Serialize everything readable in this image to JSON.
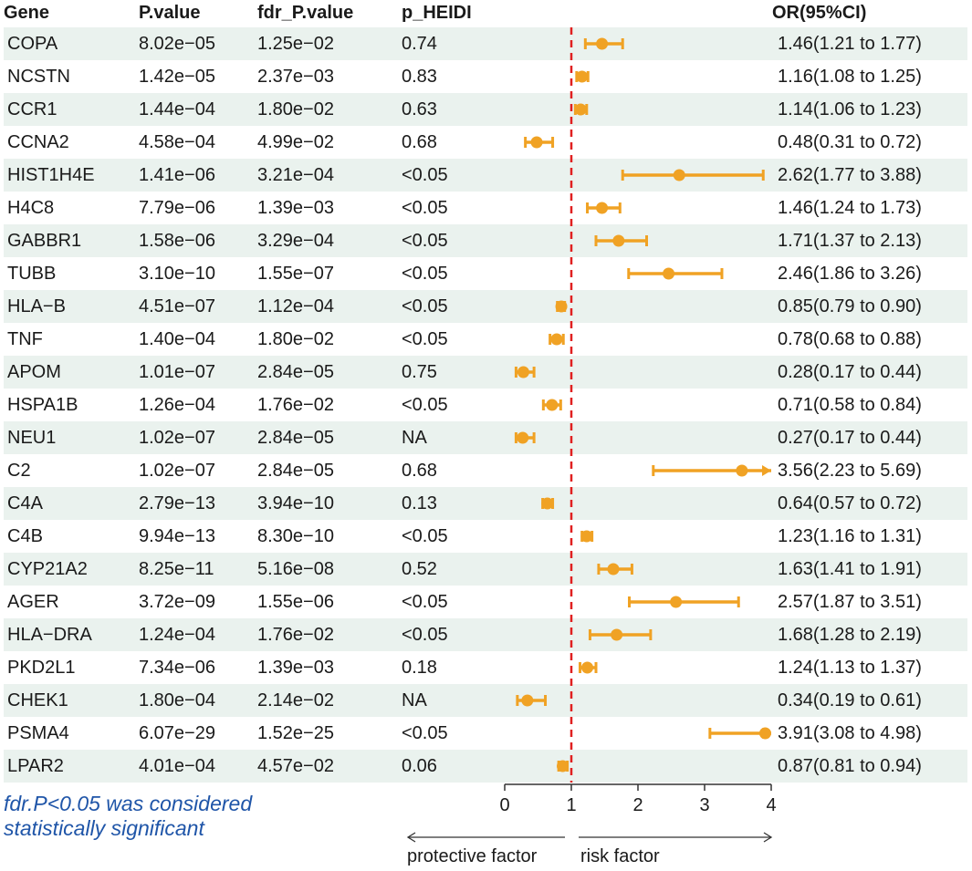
{
  "headers": {
    "gene": "Gene",
    "pvalue": "P.value",
    "fdr": "fdr_P.value",
    "heidi": "p_HEIDI",
    "or": "OR(95%CI)"
  },
  "rows": [
    {
      "gene": "COPA",
      "p": "8.02e−05",
      "fdr": "1.25e−02",
      "heidi": "0.74",
      "or_text": "1.46(1.21 to 1.77)"
    },
    {
      "gene": "NCSTN",
      "p": "1.42e−05",
      "fdr": "2.37e−03",
      "heidi": "0.83",
      "or_text": "1.16(1.08 to 1.25)"
    },
    {
      "gene": "CCR1",
      "p": "1.44e−04",
      "fdr": "1.80e−02",
      "heidi": "0.63",
      "or_text": "1.14(1.06 to 1.23)"
    },
    {
      "gene": "CCNA2",
      "p": "4.58e−04",
      "fdr": "4.99e−02",
      "heidi": "0.68",
      "or_text": "0.48(0.31 to 0.72)"
    },
    {
      "gene": "HIST1H4E",
      "p": "1.41e−06",
      "fdr": "3.21e−04",
      "heidi": "<0.05",
      "or_text": "2.62(1.77 to 3.88)"
    },
    {
      "gene": "H4C8",
      "p": "7.79e−06",
      "fdr": "1.39e−03",
      "heidi": "<0.05",
      "or_text": "1.46(1.24 to 1.73)"
    },
    {
      "gene": "GABBR1",
      "p": "1.58e−06",
      "fdr": "3.29e−04",
      "heidi": "<0.05",
      "or_text": "1.71(1.37 to 2.13)"
    },
    {
      "gene": "TUBB",
      "p": "3.10e−10",
      "fdr": "1.55e−07",
      "heidi": "<0.05",
      "or_text": "2.46(1.86 to 3.26)"
    },
    {
      "gene": "HLA−B",
      "p": "4.51e−07",
      "fdr": "1.12e−04",
      "heidi": "<0.05",
      "or_text": "0.85(0.79 to 0.90)"
    },
    {
      "gene": "TNF",
      "p": "1.40e−04",
      "fdr": "1.80e−02",
      "heidi": "<0.05",
      "or_text": "0.78(0.68 to 0.88)"
    },
    {
      "gene": "APOM",
      "p": "1.01e−07",
      "fdr": "2.84e−05",
      "heidi": "0.75",
      "or_text": "0.28(0.17 to 0.44)"
    },
    {
      "gene": "HSPA1B",
      "p": "1.26e−04",
      "fdr": "1.76e−02",
      "heidi": "<0.05",
      "or_text": "0.71(0.58 to 0.84)"
    },
    {
      "gene": "NEU1",
      "p": "1.02e−07",
      "fdr": "2.84e−05",
      "heidi": "NA",
      "or_text": "0.27(0.17 to 0.44)"
    },
    {
      "gene": "C2",
      "p": "1.02e−07",
      "fdr": "2.84e−05",
      "heidi": "0.68",
      "or_text": "3.56(2.23 to 5.69)"
    },
    {
      "gene": "C4A",
      "p": "2.79e−13",
      "fdr": "3.94e−10",
      "heidi": "0.13",
      "or_text": "0.64(0.57 to 0.72)"
    },
    {
      "gene": "C4B",
      "p": "9.94e−13",
      "fdr": "8.30e−10",
      "heidi": "<0.05",
      "or_text": "1.23(1.16 to 1.31)"
    },
    {
      "gene": "CYP21A2",
      "p": "8.25e−11",
      "fdr": "5.16e−08",
      "heidi": "0.52",
      "or_text": "1.63(1.41 to 1.91)"
    },
    {
      "gene": "AGER",
      "p": "3.72e−09",
      "fdr": "1.55e−06",
      "heidi": "<0.05",
      "or_text": "2.57(1.87 to 3.51)"
    },
    {
      "gene": "HLA−DRA",
      "p": "1.24e−04",
      "fdr": "1.76e−02",
      "heidi": "<0.05",
      "or_text": "1.68(1.28 to 2.19)"
    },
    {
      "gene": "PKD2L1",
      "p": "7.34e−06",
      "fdr": "1.39e−03",
      "heidi": "0.18",
      "or_text": "1.24(1.13 to 1.37)"
    },
    {
      "gene": "CHEK1",
      "p": "1.80e−04",
      "fdr": "2.14e−02",
      "heidi": "NA",
      "or_text": "0.34(0.19 to 0.61)"
    },
    {
      "gene": "PSMA4",
      "p": "6.07e−29",
      "fdr": "1.52e−25",
      "heidi": "<0.05",
      "or_text": "3.91(3.08 to 4.98)"
    },
    {
      "gene": "LPAR2",
      "p": "4.01e−04",
      "fdr": "4.57e−02",
      "heidi": "0.06",
      "or_text": "0.87(0.81 to 0.94)"
    }
  ],
  "chart_data": {
    "type": "forest",
    "xlabel_left": "protective factor",
    "xlabel_right": "risk factor",
    "xlim": [
      0,
      4
    ],
    "xticks": [
      0,
      1,
      2,
      3,
      4
    ],
    "reference_line": 1,
    "genes": [
      "COPA",
      "NCSTN",
      "CCR1",
      "CCNA2",
      "HIST1H4E",
      "H4C8",
      "GABBR1",
      "TUBB",
      "HLA−B",
      "TNF",
      "APOM",
      "HSPA1B",
      "NEU1",
      "C2",
      "C4A",
      "C4B",
      "CYP21A2",
      "AGER",
      "HLA−DRA",
      "PKD2L1",
      "CHEK1",
      "PSMA4",
      "LPAR2"
    ],
    "or": [
      1.46,
      1.16,
      1.14,
      0.48,
      2.62,
      1.46,
      1.71,
      2.46,
      0.85,
      0.78,
      0.28,
      0.71,
      0.27,
      3.56,
      0.64,
      1.23,
      1.63,
      2.57,
      1.68,
      1.24,
      0.34,
      3.91,
      0.87
    ],
    "ci_low": [
      1.21,
      1.08,
      1.06,
      0.31,
      1.77,
      1.24,
      1.37,
      1.86,
      0.79,
      0.68,
      0.17,
      0.58,
      0.17,
      2.23,
      0.57,
      1.16,
      1.41,
      1.87,
      1.28,
      1.13,
      0.19,
      3.08,
      0.81
    ],
    "ci_high": [
      1.77,
      1.25,
      1.23,
      0.72,
      3.88,
      1.73,
      2.13,
      3.26,
      0.9,
      0.88,
      0.44,
      0.84,
      0.44,
      5.69,
      0.72,
      1.31,
      1.91,
      3.51,
      2.19,
      1.37,
      0.61,
      4.98,
      0.94
    ]
  },
  "colors": {
    "point": "#f0a224",
    "refline": "#e02020",
    "row_shade": "#eaf2ee",
    "note": "#1f55a8"
  },
  "note": {
    "line1": "fdr.P<0.05 was considered",
    "line2": "statistically significant"
  }
}
